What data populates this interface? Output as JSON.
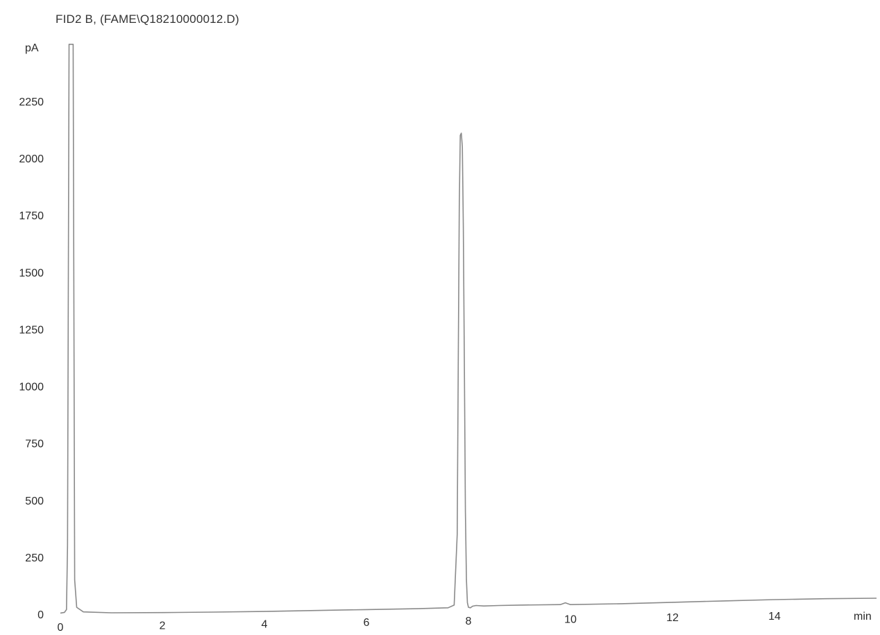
{
  "chart_data": {
    "type": "line",
    "title": "FID2 B,  (FAME\\Q18210000012.D)",
    "xlabel": "min",
    "ylabel": "pA",
    "xlim": [
      0,
      16
    ],
    "ylim": [
      0,
      2500
    ],
    "x_ticks": [
      0,
      2,
      4,
      6,
      8,
      10,
      12,
      14
    ],
    "y_ticks": [
      0,
      250,
      500,
      750,
      1000,
      1250,
      1500,
      1750,
      2000,
      2250
    ],
    "grid": false,
    "legend": "none",
    "line_color": "#8a8a8a",
    "series": [
      {
        "x": [
          0.0,
          0.08,
          0.12,
          0.14,
          0.17,
          0.19,
          0.21,
          0.23,
          0.25,
          0.28,
          0.32,
          0.45,
          1.0,
          2.0,
          3.0,
          4.0,
          5.0,
          6.0,
          7.0,
          7.6,
          7.72,
          7.78,
          7.8,
          7.82,
          7.84,
          7.86,
          7.88,
          7.9,
          7.92,
          7.94,
          7.96,
          7.98,
          8.0,
          8.04,
          8.08,
          8.15,
          8.3,
          8.6,
          9.0,
          9.8,
          9.9,
          10.0,
          11.0,
          12.0,
          13.0,
          14.0,
          15.0,
          16.0
        ],
        "y": [
          5,
          8,
          20,
          300,
          2500,
          2500,
          2500,
          2500,
          2500,
          150,
          30,
          10,
          6,
          7,
          9,
          12,
          16,
          20,
          24,
          28,
          40,
          350,
          1100,
          1800,
          2100,
          2110,
          2050,
          1700,
          1100,
          450,
          150,
          50,
          30,
          28,
          35,
          38,
          36,
          38,
          40,
          42,
          50,
          42,
          46,
          52,
          58,
          64,
          68,
          70
        ]
      }
    ]
  }
}
